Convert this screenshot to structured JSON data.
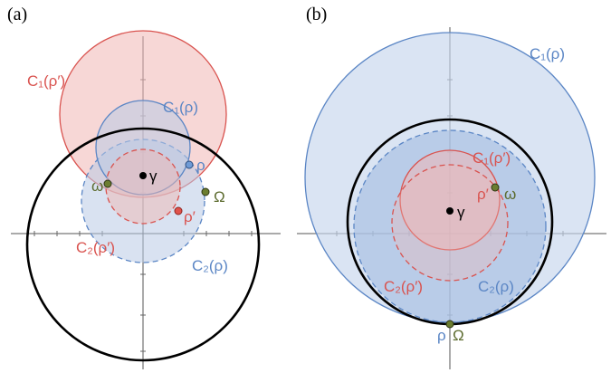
{
  "colors": {
    "red": "#d9534f",
    "red_fill": "#f0b7b4",
    "blue": "#5b86c5",
    "blue_fill": "#b9cbe6",
    "olive": "#5c6b2e",
    "black": "#000000"
  },
  "panel_a": {
    "label": "(a)",
    "c1_rho_prime": "C₁(ρ′)",
    "c1_rho": "C₁(ρ)",
    "c2_rho_prime": "C₂(ρ′)",
    "c2_rho": "C₂(ρ)",
    "gamma": "γ",
    "rho": "ρ",
    "rho_prime": "ρ′",
    "omega": "ω",
    "Omega": "Ω"
  },
  "panel_b": {
    "label": "(b)",
    "c1_rho": "C₁(ρ)",
    "c1_rho_prime": "C₁(ρ′)",
    "c2_rho_prime": "C₂(ρ′)",
    "c2_rho": "C₂(ρ)",
    "gamma": "γ",
    "rho_prime": "ρ′",
    "omega": "ω",
    "rho": "ρ",
    "Omega": "Ω"
  }
}
